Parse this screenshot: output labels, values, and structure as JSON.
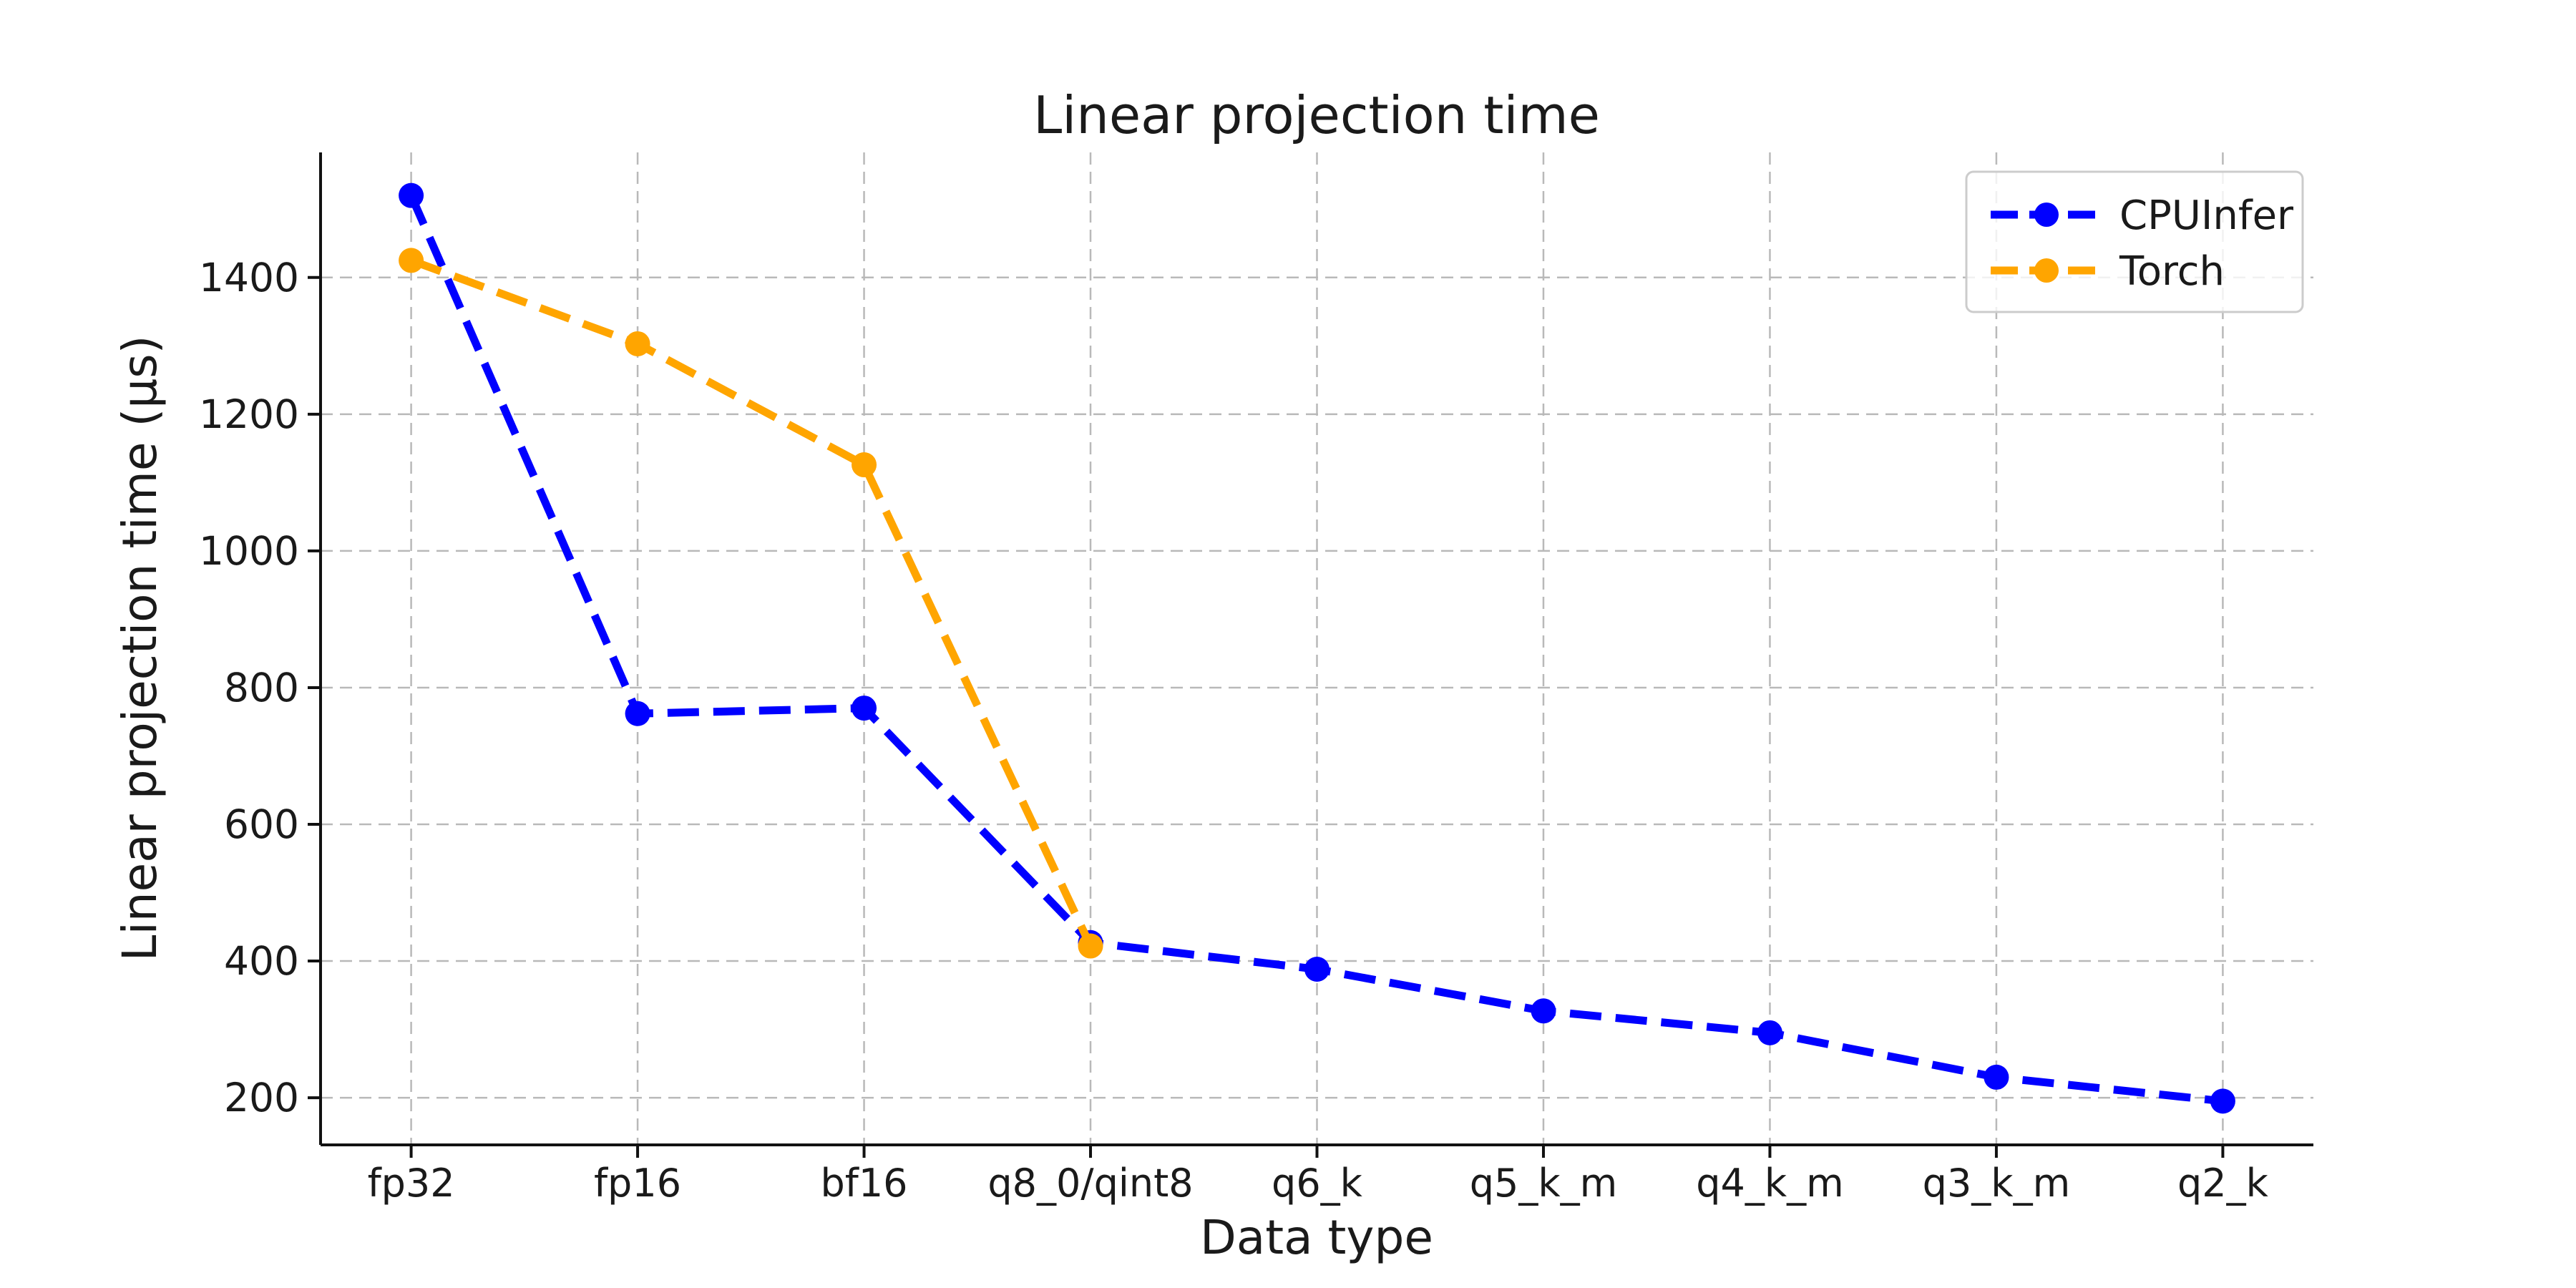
{
  "figure": {
    "title": "Linear projection time",
    "xlabel": "Data type",
    "ylabel": "Linear projection time (μs)"
  },
  "chart_data": {
    "type": "line",
    "title": "Linear projection time",
    "xlabel": "Data type",
    "ylabel": "Linear projection time (μs)",
    "categories": [
      "fp32",
      "fp16",
      "bf16",
      "q8_0/qint8",
      "q6_k",
      "q5_k_m",
      "q4_k_m",
      "q3_k_m",
      "q2_k"
    ],
    "series": [
      {
        "name": "CPUInfer",
        "color": "#0000ff",
        "linestyle": "dashed",
        "marker": "circle",
        "values": [
          1520,
          762,
          770,
          427,
          388,
          327,
          295,
          230,
          195
        ]
      },
      {
        "name": "Torch",
        "color": "#ffa500",
        "linestyle": "dashed",
        "marker": "circle",
        "values": [
          1425,
          1303,
          1126,
          422,
          null,
          null,
          null,
          null,
          null
        ]
      }
    ],
    "yticks": [
      200,
      400,
      600,
      800,
      1000,
      1200,
      1400
    ],
    "ylim": [
      131,
      1583
    ],
    "grid": true,
    "grid_color": "#b9b9b9",
    "spine_color": "#111111",
    "text_color": "#1a1a1a",
    "legend_position": "upper right",
    "legend_border_color": "#cccccc"
  }
}
